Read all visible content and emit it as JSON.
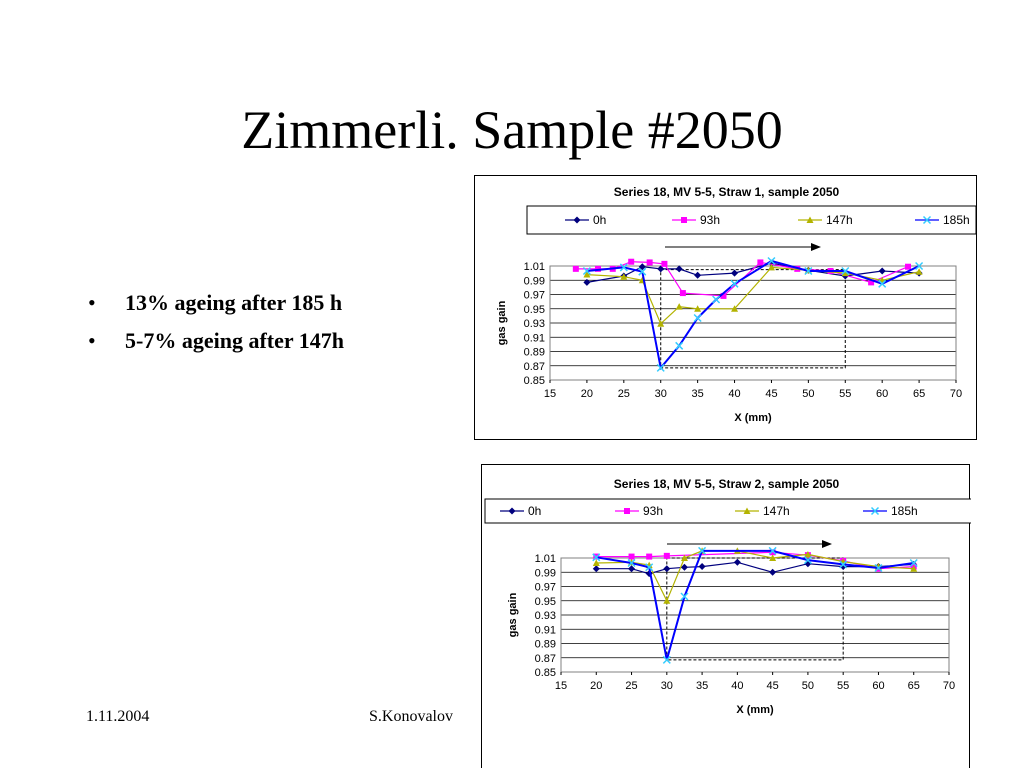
{
  "slide": {
    "title": "Zimmerli. Sample #2050",
    "bullets": [
      "13% ageing after 185 h",
      "5-7% ageing after 147h"
    ],
    "footer_date": "1.11.2004",
    "footer_author": "S.Konovalov"
  },
  "chart_data": [
    {
      "type": "line",
      "title": "Series 18, MV 5-5, Straw 1, sample 2050",
      "xlabel": "X (mm)",
      "ylabel": "gas gain",
      "xlim": [
        15,
        70
      ],
      "ylim": [
        0.85,
        1.01
      ],
      "xticks": [
        15,
        20,
        25,
        30,
        35,
        40,
        45,
        50,
        55,
        60,
        65,
        70
      ],
      "yticks": [
        0.85,
        0.87,
        0.89,
        0.91,
        0.93,
        0.95,
        0.97,
        0.99,
        1.01
      ],
      "grid": true,
      "legend_position": "top",
      "series": [
        {
          "name": "0h",
          "color": "#00007e",
          "marker": "diamond",
          "x": [
            20,
            25,
            27.5,
            30,
            32.5,
            35,
            40,
            45,
            50,
            55,
            60,
            65
          ],
          "y": [
            0.987,
            0.996,
            1.009,
            1.006,
            1.006,
            0.997,
            1.0,
            1.014,
            1.004,
            0.996,
            1.003,
            1.0
          ]
        },
        {
          "name": "93h",
          "color": "#ff00ff",
          "marker": "square",
          "x": [
            18.5,
            21.5,
            23.5,
            26,
            28.5,
            30.5,
            33,
            38.5,
            43.5,
            48.5,
            53,
            58.5,
            63.5
          ],
          "y": [
            1.006,
            1.006,
            1.006,
            1.016,
            1.015,
            1.013,
            0.972,
            0.968,
            1.015,
            1.006,
            1.003,
            0.987,
            1.009
          ]
        },
        {
          "name": "147h",
          "color": "#b3b300",
          "marker": "triangle",
          "x": [
            20,
            25,
            27.5,
            30,
            32.5,
            35,
            40,
            45,
            50,
            55,
            60,
            65
          ],
          "y": [
            0.998,
            0.995,
            0.99,
            0.929,
            0.953,
            0.95,
            0.95,
            1.008,
            1.004,
            1.0,
            0.99,
            1.002
          ]
        },
        {
          "name": "185h",
          "color": "#0000ff",
          "marker": "x",
          "x": [
            20,
            25,
            27.5,
            30,
            32.5,
            35,
            37.5,
            40,
            45,
            50,
            55,
            60,
            65
          ],
          "y": [
            1.003,
            1.008,
            1.002,
            0.867,
            0.898,
            0.937,
            0.963,
            0.985,
            1.017,
            1.003,
            1.003,
            0.985,
            1.01
          ]
        }
      ]
    },
    {
      "type": "line",
      "title": "Series 18, MV 5-5, Straw 2,  sample 2050",
      "xlabel": "X (mm)",
      "ylabel": "gas gain",
      "xlim": [
        15,
        70
      ],
      "ylim": [
        0.85,
        1.01
      ],
      "xticks": [
        15,
        20,
        25,
        30,
        35,
        40,
        45,
        50,
        55,
        60,
        65,
        70
      ],
      "yticks": [
        0.85,
        0.87,
        0.89,
        0.91,
        0.93,
        0.95,
        0.97,
        0.99,
        1.01
      ],
      "grid": true,
      "legend_position": "top",
      "series": [
        {
          "name": "0h",
          "color": "#00007e",
          "marker": "diamond",
          "x": [
            20,
            25,
            27.5,
            30,
            32.5,
            35,
            40,
            45,
            50,
            55,
            60,
            65
          ],
          "y": [
            0.995,
            0.995,
            0.988,
            0.995,
            0.997,
            0.998,
            1.004,
            0.99,
            1.002,
            0.998,
            0.998,
            1.001
          ]
        },
        {
          "name": "93h",
          "color": "#ff00ff",
          "marker": "square",
          "x": [
            20,
            25,
            27.5,
            30,
            45,
            50,
            55,
            60,
            65
          ],
          "y": [
            1.012,
            1.012,
            1.012,
            1.013,
            1.018,
            1.014,
            1.006,
            0.995,
            0.998
          ]
        },
        {
          "name": "147h",
          "color": "#b3b300",
          "marker": "triangle",
          "x": [
            20,
            25,
            27.5,
            30,
            32.5,
            35,
            40,
            45,
            50,
            55,
            60,
            65
          ],
          "y": [
            1.003,
            1.004,
            1.0,
            0.95,
            1.01,
            1.02,
            1.02,
            1.01,
            1.015,
            1.005,
            0.998,
            0.995
          ]
        },
        {
          "name": "185h",
          "color": "#0000ff",
          "marker": "x",
          "x": [
            20,
            25,
            27.5,
            30,
            32.5,
            35,
            45,
            50,
            55,
            60,
            65
          ],
          "y": [
            1.011,
            1.003,
            0.997,
            0.867,
            0.956,
            1.02,
            1.02,
            1.007,
            1.001,
            0.996,
            1.003
          ]
        }
      ]
    }
  ]
}
